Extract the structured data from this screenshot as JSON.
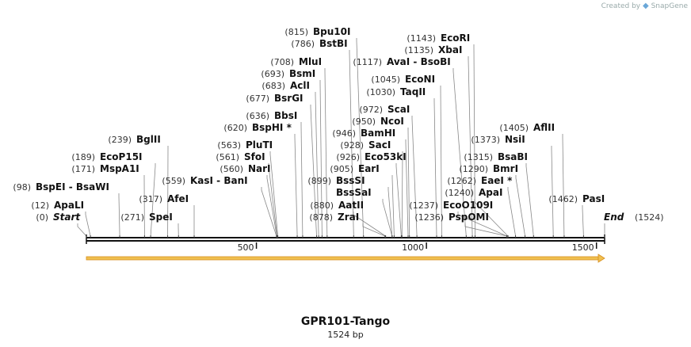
{
  "brand": {
    "prefix": "Created by",
    "name": "SnapGene",
    "icon": "snapgene-logo-icon"
  },
  "title": "GPR101-Tango",
  "subtitle": "1524 bp",
  "length": 1524,
  "ticks": [
    500,
    1000,
    1500
  ],
  "colors": {
    "feature_arrow": "#f0c050",
    "feature_arrow_stroke": "#d89020",
    "backbone": "#111111"
  },
  "sites": [
    {
      "name": "ApaLI",
      "pos": 12,
      "pos_label": "(12)"
    },
    {
      "name": "Start",
      "pos": 0,
      "pos_label": "(0)",
      "italic": true
    },
    {
      "name": "BspEI  -  BsaWI",
      "pos": 98,
      "pos_label": "(98)"
    },
    {
      "name": "MspA1I",
      "pos": 171,
      "pos_label": "(171)"
    },
    {
      "name": "EcoP15I",
      "pos": 189,
      "pos_label": "(189)"
    },
    {
      "name": "BglII",
      "pos": 239,
      "pos_label": "(239)"
    },
    {
      "name": "SpeI",
      "pos": 271,
      "pos_label": "(271)"
    },
    {
      "name": "AfeI",
      "pos": 317,
      "pos_label": "(317)"
    },
    {
      "name": "KasI  -  BanI",
      "pos": 559,
      "pos_label": "(559)"
    },
    {
      "name": "NarI",
      "pos": 560,
      "pos_label": "(560)"
    },
    {
      "name": "SfoI",
      "pos": 561,
      "pos_label": "(561)"
    },
    {
      "name": "PluTI",
      "pos": 563,
      "pos_label": "(563)"
    },
    {
      "name": "BspHI *",
      "pos": 620,
      "pos_label": "(620)"
    },
    {
      "name": "BbsI",
      "pos": 636,
      "pos_label": "(636)"
    },
    {
      "name": "BsrGI",
      "pos": 677,
      "pos_label": "(677)"
    },
    {
      "name": "AclI",
      "pos": 683,
      "pos_label": "(683)"
    },
    {
      "name": "BsmI",
      "pos": 693,
      "pos_label": "(693)"
    },
    {
      "name": "MluI",
      "pos": 708,
      "pos_label": "(708)"
    },
    {
      "name": "BstBI",
      "pos": 786,
      "pos_label": "(786)"
    },
    {
      "name": "Bpu10I",
      "pos": 815,
      "pos_label": "(815)"
    },
    {
      "name": "ZraI",
      "pos": 878,
      "pos_label": "(878)"
    },
    {
      "name": "AatII",
      "pos": 880,
      "pos_label": "(880)"
    },
    {
      "name": "BssSaI",
      "pos": 899,
      "pos_label": ""
    },
    {
      "name": "BssSI",
      "pos": 899,
      "pos_label": "(899)"
    },
    {
      "name": "EarI",
      "pos": 905,
      "pos_label": "(905)"
    },
    {
      "name": "Eco53kI",
      "pos": 926,
      "pos_label": "(926)"
    },
    {
      "name": "SacI",
      "pos": 928,
      "pos_label": "(928)"
    },
    {
      "name": "BamHI",
      "pos": 946,
      "pos_label": "(946)"
    },
    {
      "name": "NcoI",
      "pos": 950,
      "pos_label": "(950)"
    },
    {
      "name": "ScaI",
      "pos": 972,
      "pos_label": "(972)"
    },
    {
      "name": "TaqII",
      "pos": 1030,
      "pos_label": "(1030)"
    },
    {
      "name": "EcoNI",
      "pos": 1045,
      "pos_label": "(1045)"
    },
    {
      "name": "AvaI  -  BsoBI",
      "pos": 1117,
      "pos_label": "(1117)"
    },
    {
      "name": "XbaI",
      "pos": 1135,
      "pos_label": "(1135)"
    },
    {
      "name": "EcoRI",
      "pos": 1143,
      "pos_label": "(1143)"
    },
    {
      "name": "PspOMI",
      "pos": 1236,
      "pos_label": "(1236)"
    },
    {
      "name": "EcoO109I",
      "pos": 1237,
      "pos_label": "(1237)"
    },
    {
      "name": "ApaI",
      "pos": 1240,
      "pos_label": "(1240)"
    },
    {
      "name": "EaeI *",
      "pos": 1262,
      "pos_label": "(1262)"
    },
    {
      "name": "BmrI",
      "pos": 1290,
      "pos_label": "(1290)"
    },
    {
      "name": "BsaBI",
      "pos": 1315,
      "pos_label": "(1315)"
    },
    {
      "name": "NsiI",
      "pos": 1373,
      "pos_label": "(1373)"
    },
    {
      "name": "AflII",
      "pos": 1405,
      "pos_label": "(1405)"
    },
    {
      "name": "PasI",
      "pos": 1462,
      "pos_label": "(1462)"
    },
    {
      "name": "End",
      "pos": 1524,
      "pos_label": "(1524)",
      "italic": true
    }
  ]
}
